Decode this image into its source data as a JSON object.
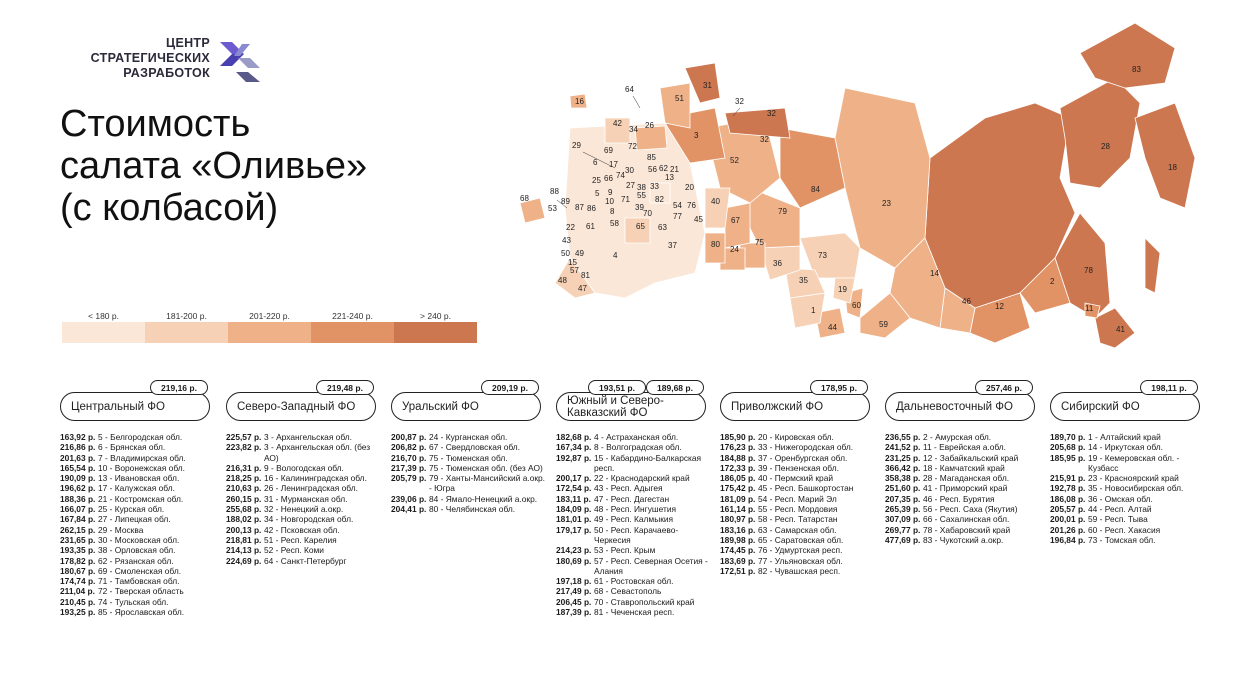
{
  "logo": {
    "line1": "ЦЕНТР",
    "line2": "СТРАТЕГИЧЕСКИХ",
    "line3": "РАЗРАБОТОК"
  },
  "title": {
    "line1": "Стоимость",
    "line2": "салата «Оливье»",
    "line3": "(с колбасой)"
  },
  "legend": [
    {
      "label": "< 180 р.",
      "color": "#fbe7d8"
    },
    {
      "label": "181-200 р.",
      "color": "#f6d1b5"
    },
    {
      "label": "201-220 р.",
      "color": "#efb288"
    },
    {
      "label": "221-240 р.",
      "color": "#e29365"
    },
    {
      "label": "> 240 р.",
      "color": "#cd7750"
    }
  ],
  "map_labels": [
    "16",
    "64",
    "51",
    "31",
    "32",
    "32",
    "32",
    "83",
    "42",
    "34",
    "26",
    "29",
    "69",
    "72",
    "3",
    "85",
    "52",
    "6",
    "17",
    "30",
    "62",
    "33",
    "27",
    "25",
    "66",
    "74",
    "5",
    "10",
    "71",
    "56",
    "39",
    "55",
    "82",
    "54",
    "76",
    "20",
    "68",
    "88",
    "89",
    "53",
    "86",
    "87",
    "8",
    "65",
    "22",
    "61",
    "58",
    "63",
    "40",
    "79",
    "84",
    "23",
    "28",
    "18",
    "67",
    "37",
    "75",
    "43",
    "80",
    "24",
    "50",
    "49",
    "4",
    "15",
    "57",
    "81",
    "48",
    "47",
    "36",
    "73",
    "35",
    "19",
    "1",
    "44",
    "60",
    "59",
    "14",
    "46",
    "12",
    "2",
    "78",
    "11",
    "41",
    "38",
    "13",
    "77",
    "21",
    "9",
    "70",
    "45"
  ],
  "districts": [
    {
      "name": "Центральный ФО",
      "avg": "219,16 р.",
      "rows": [
        {
          "v": "163,92 р.",
          "n": "5 - Белгородская обл."
        },
        {
          "v": "216,86 р.",
          "n": "6 - Брянская обл."
        },
        {
          "v": "201,63 р.",
          "n": "7 - Владимирская обл."
        },
        {
          "v": "165,54 р.",
          "n": "10 - Воронежская обл."
        },
        {
          "v": "190,09 р.",
          "n": "13 - Ивановская обл."
        },
        {
          "v": "196,62 р.",
          "n": "17 - Калужская обл."
        },
        {
          "v": "188,36 р.",
          "n": "21 - Костромская обл."
        },
        {
          "v": "166,07 р.",
          "n": "25 - Курская обл."
        },
        {
          "v": "167,84 р.",
          "n": "27 - Липецкая обл."
        },
        {
          "v": "262,15 р.",
          "n": "29 - Москва"
        },
        {
          "v": "231,65 р.",
          "n": "30 - Московская обл."
        },
        {
          "v": "193,35 р.",
          "n": "38 - Орловская обл."
        },
        {
          "v": "178,82 р.",
          "n": "62 - Рязанская обл."
        },
        {
          "v": "180,67 р.",
          "n": "69 - Смоленская обл."
        },
        {
          "v": "174,74 р.",
          "n": "71 - Тамбовская обл."
        },
        {
          "v": "211,04 р.",
          "n": "72 - Тверская область"
        },
        {
          "v": "210,45 р.",
          "n": "74 - Тульская обл."
        },
        {
          "v": "193,25 р.",
          "n": "85 - Ярославская обл."
        }
      ]
    },
    {
      "name": "Северо-Западный ФО",
      "avg": "219,48 р.",
      "rows": [
        {
          "v": "225,57 р.",
          "n": "3 - Архангельская обл."
        },
        {
          "v": "223,82 р.",
          "n": "3 - Архангельская обл. (без АО)"
        },
        {
          "v": "216,31 р.",
          "n": "9 - Вологодская обл."
        },
        {
          "v": "218,25 р.",
          "n": "16 - Калининградская обл."
        },
        {
          "v": "210,63 р.",
          "n": "26 - Ленинградская обл."
        },
        {
          "v": "260,15 р.",
          "n": "31 - Мурманская обл."
        },
        {
          "v": "255,68 р.",
          "n": "32 - Ненецкий а.окр."
        },
        {
          "v": "188,02 р.",
          "n": "34 - Новгородская обл."
        },
        {
          "v": "200,13 р.",
          "n": "42 - Псковская обл."
        },
        {
          "v": "218,81 р.",
          "n": "51 - Респ. Карелия"
        },
        {
          "v": "214,13 р.",
          "n": "52 - Респ. Коми"
        },
        {
          "v": "224,69 р.",
          "n": "64 - Санкт-Петербург"
        }
      ]
    },
    {
      "name": "Уральский ФО",
      "avg": "209,19 р.",
      "rows": [
        {
          "v": "200,87 р.",
          "n": "24 - Курганская обл."
        },
        {
          "v": "206,82 р.",
          "n": "67 - Свердловская обл."
        },
        {
          "v": "216,70 р.",
          "n": "75 - Тюменская обл."
        },
        {
          "v": "217,39 р.",
          "n": "75 - Тюменская обл. (без АО)"
        },
        {
          "v": "205,79 р.",
          "n": "79 - Ханты-Мансийский а.окр. - Югра"
        },
        {
          "v": "239,06 р.",
          "n": "84 - Ямало-Ненецкий а.окр."
        },
        {
          "v": "204,41 р.",
          "n": "80 - Челябинская обл."
        }
      ]
    },
    {
      "name": "Южный и Северо-Кавказский ФО",
      "avg": "193,51 р.",
      "avg2": "189,68 р.",
      "rows": [
        {
          "v": "182,68 р.",
          "n": "4 - Астраханская обл."
        },
        {
          "v": "167,34 р.",
          "n": "8 - Волгоградская обл."
        },
        {
          "v": "192,87 р.",
          "n": "15 - Кабардино-Балкарская респ."
        },
        {
          "v": "200,17 р.",
          "n": "22 - Краснодарский край"
        },
        {
          "v": "172,54 р.",
          "n": "43 - Респ. Адыгея"
        },
        {
          "v": "183,11 р.",
          "n": "47 - Респ. Дагестан"
        },
        {
          "v": "184,09 р.",
          "n": "48 - Респ. Ингушетия"
        },
        {
          "v": "181,01 р.",
          "n": "49 - Респ. Калмыкия"
        },
        {
          "v": "179,17 р.",
          "n": "50 - Респ. Карачаево-Черкесия"
        },
        {
          "v": "214,23 р.",
          "n": "53 - Респ. Крым"
        },
        {
          "v": "180,69 р.",
          "n": "57 - Респ. Северная Осетия - Алания"
        },
        {
          "v": "197,18 р.",
          "n": "61 - Ростовская обл."
        },
        {
          "v": "217,49 р.",
          "n": "68 - Севастополь"
        },
        {
          "v": "206,45 р.",
          "n": "70 - Ставропольский край"
        },
        {
          "v": "187,39 р.",
          "n": "81 - Чеченская респ."
        }
      ]
    },
    {
      "name": "Приволжский ФО",
      "avg": "178,95 р.",
      "rows": [
        {
          "v": "185,90 р.",
          "n": "20 - Кировская обл."
        },
        {
          "v": "176,23 р.",
          "n": "33 - Нижегородская обл."
        },
        {
          "v": "184,88 р.",
          "n": "37 - Оренбургская обл."
        },
        {
          "v": "172,33 р.",
          "n": "39 - Пензенская обл."
        },
        {
          "v": "186,05 р.",
          "n": "40 - Пермский край"
        },
        {
          "v": "175,42 р.",
          "n": "45 - Респ. Башкортостан"
        },
        {
          "v": "181,09 р.",
          "n": "54 - Респ. Марий Эл"
        },
        {
          "v": "161,14 р.",
          "n": "55 - Респ. Мордовия"
        },
        {
          "v": "180,97 р.",
          "n": "58 - Респ. Татарстан"
        },
        {
          "v": "183,16 р.",
          "n": "63 - Самарская обл."
        },
        {
          "v": "189,98 р.",
          "n": "65 - Саратовская обл."
        },
        {
          "v": "174,45 р.",
          "n": "76 - Удмуртская респ."
        },
        {
          "v": "183,69 р.",
          "n": "77 - Ульяновская обл."
        },
        {
          "v": "172,51 р.",
          "n": "82 - Чувашская респ."
        }
      ]
    },
    {
      "name": "Дальневосточный ФО",
      "avg": "257,46 р.",
      "rows": [
        {
          "v": "236,55 р.",
          "n": "2 - Амурская обл."
        },
        {
          "v": "241,52 р.",
          "n": "11 - Еврейская а.обл."
        },
        {
          "v": "231,25 р.",
          "n": "12 - Забайкальский край"
        },
        {
          "v": "366,42 р.",
          "n": "18 - Камчатский край"
        },
        {
          "v": "358,38 р.",
          "n": "28 - Магаданская обл."
        },
        {
          "v": "251,60 р.",
          "n": "41 - Приморский край"
        },
        {
          "v": "207,35 р.",
          "n": "46 - Респ. Бурятия"
        },
        {
          "v": "265,39 р.",
          "n": "56 - Респ. Саха (Якутия)"
        },
        {
          "v": "307,09 р.",
          "n": "66 - Сахалинская обл."
        },
        {
          "v": "269,77 р.",
          "n": "78 - Хабаровский край"
        },
        {
          "v": "477,69 р.",
          "n": "83 - Чукотский а.окр."
        }
      ]
    },
    {
      "name": "Сибирский ФО",
      "avg": "198,11 р.",
      "rows": [
        {
          "v": "189,70 р.",
          "n": "1 - Алтайский край"
        },
        {
          "v": "205,68 р.",
          "n": "14 - Иркутская обл."
        },
        {
          "v": "185,95 р.",
          "n": "19 - Кемеровская обл. - Кузбасс"
        },
        {
          "v": "215,91 р.",
          "n": "23 - Красноярский край"
        },
        {
          "v": "192,78 р.",
          "n": "35 - Новосибирская обл."
        },
        {
          "v": "186,08 р.",
          "n": "36 - Омская обл."
        },
        {
          "v": "205,57 р.",
          "n": "44 - Респ. Алтай"
        },
        {
          "v": "200,01 р.",
          "n": "59 - Респ. Тыва"
        },
        {
          "v": "201,26 р.",
          "n": "60 - Респ. Хакасия"
        },
        {
          "v": "196,84 р.",
          "n": "73 - Томская обл."
        }
      ]
    }
  ]
}
